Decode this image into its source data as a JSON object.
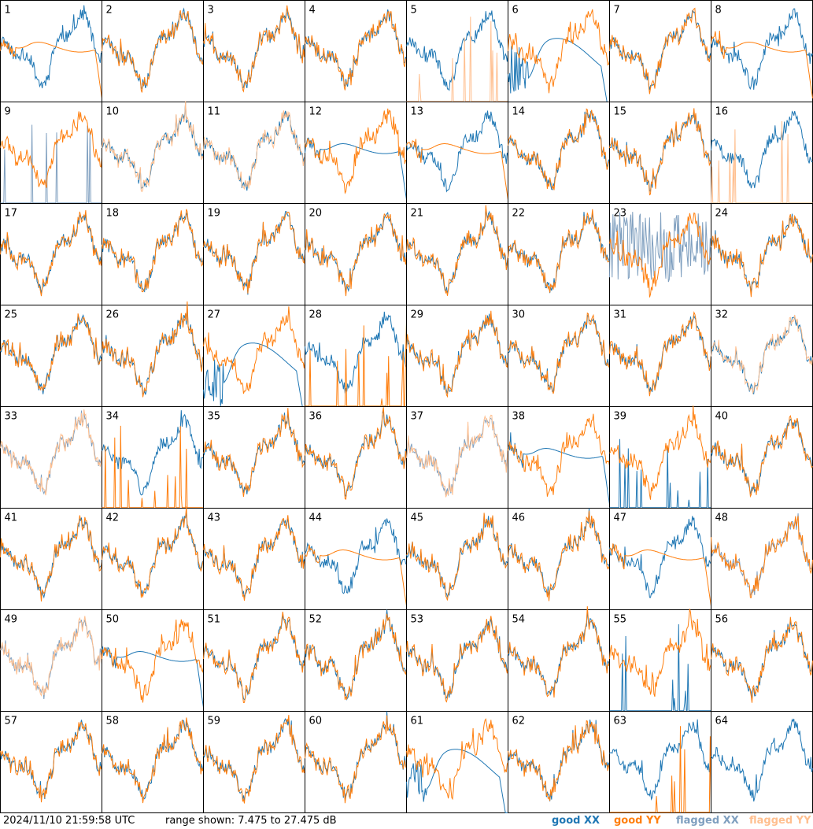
{
  "footer": {
    "timestamp": "2024/11/10 21:59:58 UTC",
    "range_text": "range shown: 7.475 to 27.475 dB"
  },
  "legend": [
    {
      "key": "good_xx",
      "label": "good XX",
      "color": "#1f77b4"
    },
    {
      "key": "good_yy",
      "label": "good YY",
      "color": "#ff7f0e"
    },
    {
      "key": "flagged_xx",
      "label": "flagged XX",
      "color": "#7f9fbf"
    },
    {
      "key": "flagged_yy",
      "label": "flagged YY",
      "color": "#ffbf8f"
    }
  ],
  "chart_data": {
    "type": "line",
    "layout": "8x8 small multiples",
    "ylim": [
      7.475,
      27.475
    ],
    "yunit": "dB",
    "panels": [
      {
        "label": "1",
        "xx": "good",
        "yy": "good",
        "pattern": "yy_smooth"
      },
      {
        "label": "2",
        "xx": "good",
        "yy": "good",
        "pattern": "normal"
      },
      {
        "label": "3",
        "xx": "good",
        "yy": "good",
        "pattern": "normal"
      },
      {
        "label": "4",
        "xx": "good",
        "yy": "good",
        "pattern": "normal"
      },
      {
        "label": "5",
        "xx": "good",
        "yy": "flagged",
        "pattern": "yy_spikes"
      },
      {
        "label": "6",
        "xx": "good",
        "yy": "good",
        "pattern": "xx_dip"
      },
      {
        "label": "7",
        "xx": "good",
        "yy": "good",
        "pattern": "normal"
      },
      {
        "label": "8",
        "xx": "good",
        "yy": "good",
        "pattern": "yy_smooth"
      },
      {
        "label": "9",
        "xx": "flagged",
        "yy": "good",
        "pattern": "xx_spikes"
      },
      {
        "label": "10",
        "xx": "good",
        "yy": "flagged",
        "pattern": "normal"
      },
      {
        "label": "11",
        "xx": "good",
        "yy": "flagged",
        "pattern": "normal"
      },
      {
        "label": "12",
        "xx": "good",
        "yy": "good",
        "pattern": "xx_smooth"
      },
      {
        "label": "13",
        "xx": "good",
        "yy": "good",
        "pattern": "yy_smooth"
      },
      {
        "label": "14",
        "xx": "good",
        "yy": "good",
        "pattern": "normal"
      },
      {
        "label": "15",
        "xx": "good",
        "yy": "good",
        "pattern": "normal"
      },
      {
        "label": "16",
        "xx": "good",
        "yy": "flagged",
        "pattern": "yy_spikes"
      },
      {
        "label": "17",
        "xx": "good",
        "yy": "good",
        "pattern": "normal"
      },
      {
        "label": "18",
        "xx": "good",
        "yy": "good",
        "pattern": "normal"
      },
      {
        "label": "19",
        "xx": "good",
        "yy": "good",
        "pattern": "normal"
      },
      {
        "label": "20",
        "xx": "good",
        "yy": "good",
        "pattern": "normal"
      },
      {
        "label": "21",
        "xx": "good",
        "yy": "good",
        "pattern": "normal"
      },
      {
        "label": "22",
        "xx": "good",
        "yy": "good",
        "pattern": "normal"
      },
      {
        "label": "23",
        "xx": "flagged",
        "yy": "good",
        "pattern": "xx_noisy"
      },
      {
        "label": "24",
        "xx": "good",
        "yy": "good",
        "pattern": "normal"
      },
      {
        "label": "25",
        "xx": "good",
        "yy": "good",
        "pattern": "normal"
      },
      {
        "label": "26",
        "xx": "good",
        "yy": "good",
        "pattern": "normal"
      },
      {
        "label": "27",
        "xx": "good",
        "yy": "good",
        "pattern": "xx_dip"
      },
      {
        "label": "28",
        "xx": "good",
        "yy": "good",
        "pattern": "yy_spikes"
      },
      {
        "label": "29",
        "xx": "good",
        "yy": "good",
        "pattern": "normal"
      },
      {
        "label": "30",
        "xx": "good",
        "yy": "good",
        "pattern": "normal"
      },
      {
        "label": "31",
        "xx": "good",
        "yy": "good",
        "pattern": "normal"
      },
      {
        "label": "32",
        "xx": "good",
        "yy": "flagged",
        "pattern": "normal"
      },
      {
        "label": "33",
        "xx": "flagged",
        "yy": "flagged",
        "pattern": "normal"
      },
      {
        "label": "34",
        "xx": "good",
        "yy": "good",
        "pattern": "yy_spikes"
      },
      {
        "label": "35",
        "xx": "good",
        "yy": "good",
        "pattern": "normal"
      },
      {
        "label": "36",
        "xx": "good",
        "yy": "good",
        "pattern": "normal"
      },
      {
        "label": "37",
        "xx": "flagged",
        "yy": "flagged",
        "pattern": "normal"
      },
      {
        "label": "38",
        "xx": "good",
        "yy": "good",
        "pattern": "xx_smooth"
      },
      {
        "label": "39",
        "xx": "good",
        "yy": "good",
        "pattern": "xx_spikes"
      },
      {
        "label": "40",
        "xx": "good",
        "yy": "good",
        "pattern": "normal"
      },
      {
        "label": "41",
        "xx": "good",
        "yy": "good",
        "pattern": "normal"
      },
      {
        "label": "42",
        "xx": "good",
        "yy": "good",
        "pattern": "normal"
      },
      {
        "label": "43",
        "xx": "good",
        "yy": "good",
        "pattern": "normal"
      },
      {
        "label": "44",
        "xx": "good",
        "yy": "good",
        "pattern": "yy_smooth"
      },
      {
        "label": "45",
        "xx": "good",
        "yy": "good",
        "pattern": "normal"
      },
      {
        "label": "46",
        "xx": "good",
        "yy": "good",
        "pattern": "normal"
      },
      {
        "label": "47",
        "xx": "good",
        "yy": "good",
        "pattern": "yy_smooth"
      },
      {
        "label": "48",
        "xx": "flagged",
        "yy": "good",
        "pattern": "normal"
      },
      {
        "label": "49",
        "xx": "flagged",
        "yy": "flagged",
        "pattern": "normal"
      },
      {
        "label": "50",
        "xx": "good",
        "yy": "good",
        "pattern": "xx_smooth"
      },
      {
        "label": "51",
        "xx": "good",
        "yy": "good",
        "pattern": "normal"
      },
      {
        "label": "52",
        "xx": "good",
        "yy": "good",
        "pattern": "normal"
      },
      {
        "label": "53",
        "xx": "good",
        "yy": "good",
        "pattern": "normal"
      },
      {
        "label": "54",
        "xx": "good",
        "yy": "good",
        "pattern": "normal"
      },
      {
        "label": "55",
        "xx": "good",
        "yy": "good",
        "pattern": "xx_spikes"
      },
      {
        "label": "56",
        "xx": "good",
        "yy": "good",
        "pattern": "normal"
      },
      {
        "label": "57",
        "xx": "good",
        "yy": "good",
        "pattern": "normal"
      },
      {
        "label": "58",
        "xx": "good",
        "yy": "good",
        "pattern": "normal"
      },
      {
        "label": "59",
        "xx": "good",
        "yy": "good",
        "pattern": "normal"
      },
      {
        "label": "60",
        "xx": "good",
        "yy": "good",
        "pattern": "normal"
      },
      {
        "label": "61",
        "xx": "good",
        "yy": "good",
        "pattern": "xx_dip"
      },
      {
        "label": "62",
        "xx": "good",
        "yy": "good",
        "pattern": "normal"
      },
      {
        "label": "63",
        "xx": "good",
        "yy": "good",
        "pattern": "yy_spikes"
      },
      {
        "label": "64",
        "xx": "good",
        "yy": "none",
        "pattern": "xx_only"
      }
    ]
  }
}
